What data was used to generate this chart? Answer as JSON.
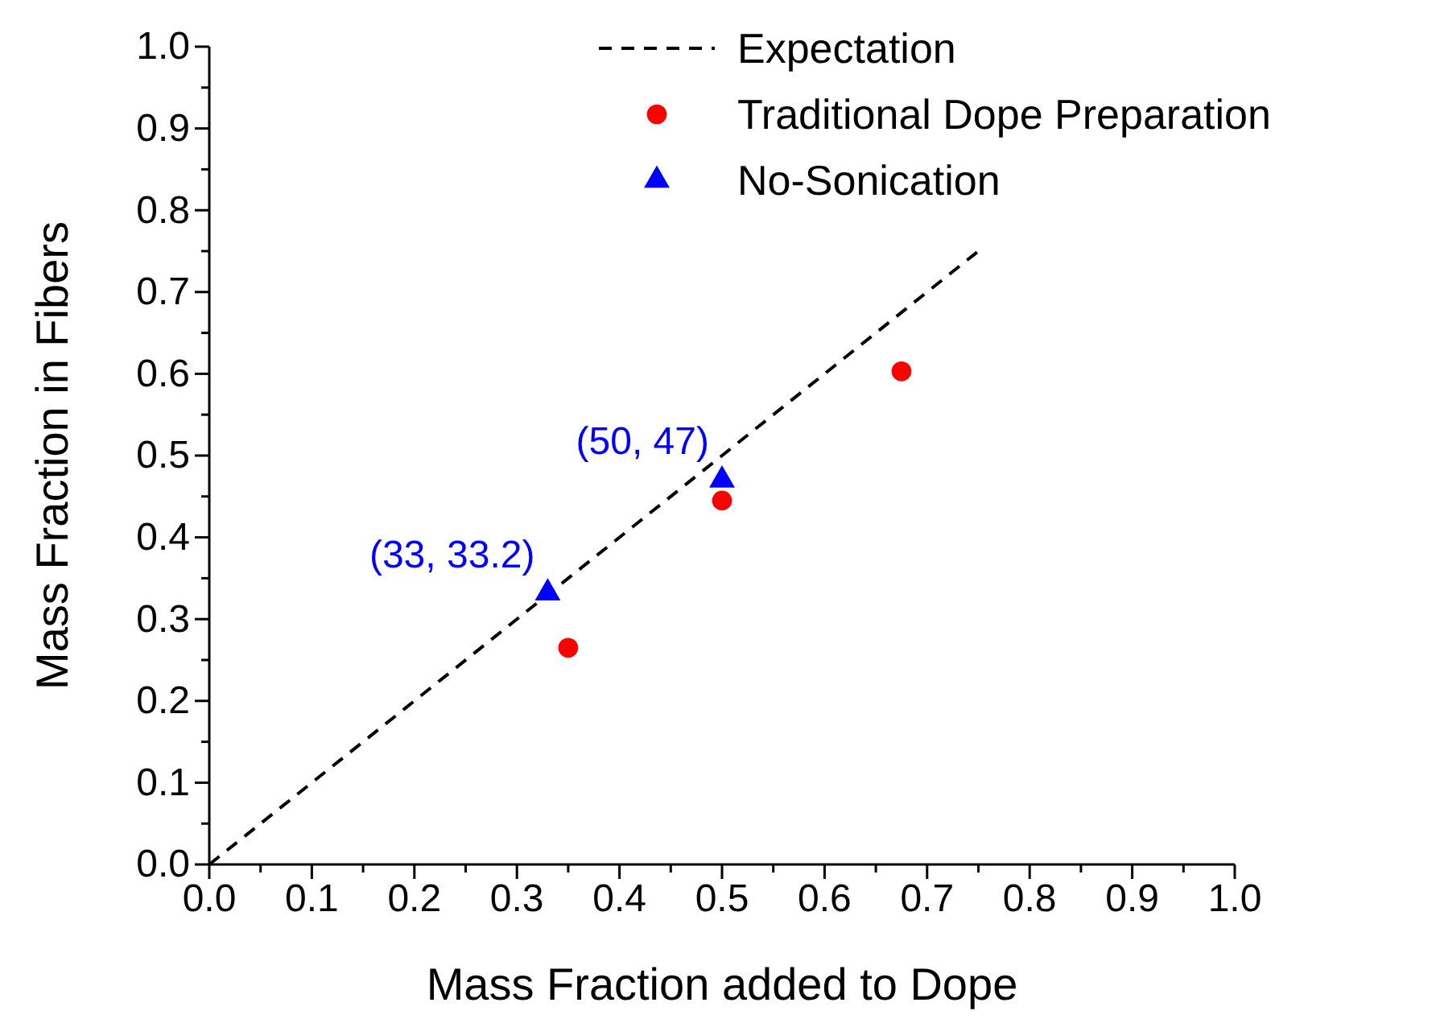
{
  "chart_data": {
    "type": "scatter",
    "xlabel": "Mass Fraction added to Dope",
    "ylabel": "Mass Fraction in Fibers",
    "xlim": [
      0,
      1
    ],
    "ylim": [
      0,
      1
    ],
    "xticks": [
      {
        "value": 0,
        "label": "0.0"
      },
      {
        "value": 0.05,
        "label": null
      },
      0.1,
      {
        "value": 0.15,
        "label": null
      },
      0.2,
      {
        "value": 0.25,
        "label": null
      },
      0.3,
      {
        "value": 0.35,
        "label": null
      },
      0.4,
      {
        "value": 0.45,
        "label": null
      },
      0.5,
      {
        "value": 0.55,
        "label": null
      },
      0.6,
      {
        "value": 0.65,
        "label": null
      },
      0.7,
      {
        "value": 0.75,
        "label": null
      },
      0.8,
      {
        "value": 0.85,
        "label": null
      },
      0.9,
      {
        "value": 0.95,
        "label": null
      },
      {
        "value": 1,
        "label": "1.0"
      }
    ],
    "yticks": [
      {
        "value": 0,
        "label": "0.0"
      },
      {
        "value": 0.05,
        "label": null
      },
      0.1,
      {
        "value": 0.15,
        "label": null
      },
      0.2,
      {
        "value": 0.25,
        "label": null
      },
      0.3,
      {
        "value": 0.35,
        "label": null
      },
      0.4,
      {
        "value": 0.45,
        "label": null
      },
      0.5,
      {
        "value": 0.55,
        "label": null
      },
      0.6,
      {
        "value": 0.65,
        "label": null
      },
      0.7,
      {
        "value": 0.75,
        "label": null
      },
      0.8,
      {
        "value": 0.85,
        "label": null
      },
      0.9,
      {
        "value": 0.95,
        "label": null
      },
      {
        "value": 1,
        "label": "1.0"
      }
    ],
    "legend": "top right",
    "grid": false,
    "series": [
      {
        "name": "Expectation",
        "type": "line",
        "line_style": "dashed",
        "marker": "none",
        "color": "#000000",
        "x": [
          0,
          0.75
        ],
        "values": [
          0,
          0.75
        ]
      },
      {
        "name": "Traditional Dope Preparation",
        "marker": "circle",
        "color": "#ff0000",
        "x": [
          0.35,
          0.5,
          0.675
        ],
        "values": [
          0.265,
          0.445,
          0.603
        ]
      },
      {
        "name": "No-Sonication",
        "marker": "triangle",
        "color": "#0000ff",
        "x": [
          0.33,
          0.5
        ],
        "values": [
          0.332,
          0.47
        ]
      }
    ],
    "annotations": [
      {
        "text": "(33, 33.2)",
        "x": 0.33,
        "y": 0.332
      },
      {
        "text": "(50, 47)",
        "x": 0.5,
        "y": 0.47
      }
    ]
  }
}
